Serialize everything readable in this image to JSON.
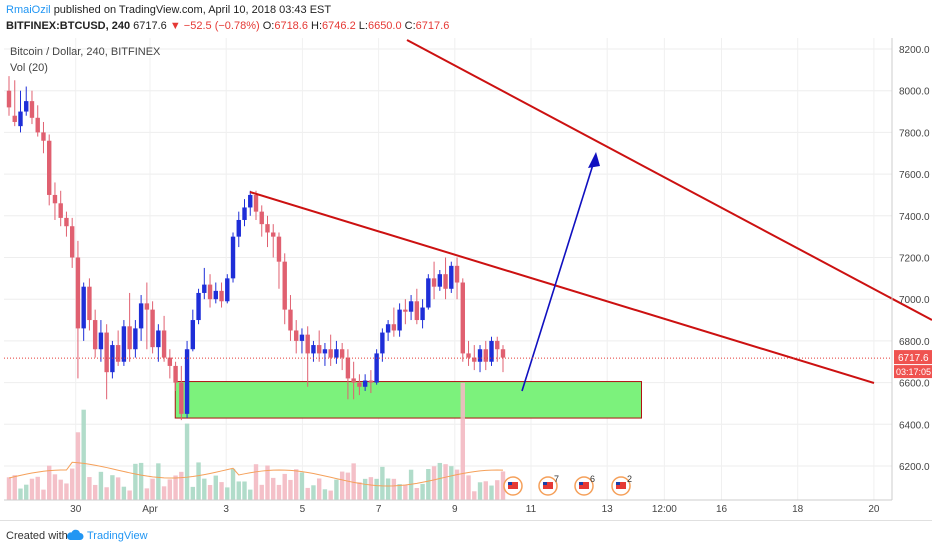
{
  "header": {
    "author": "RmaiOzil",
    "published_text": "published on TradingView.com, April 10, 2018 03:43 EST",
    "symbol": "BITFINEX:BTCUSD, 240",
    "last": "6717.6",
    "change": "▼ −52.5 (−0.78%)",
    "o_label": "O:",
    "o": "6718.6",
    "h_label": "H:",
    "h": "6746.2",
    "l_label": "L:",
    "l": "6650.0",
    "c_label": "C:",
    "c": "6717.6"
  },
  "pane": {
    "title": "Bitcoin / Dollar, 240, BITFINEX",
    "vol_title": "Vol (20)"
  },
  "footer": {
    "created_with": "Created with",
    "brand": "TradingView"
  },
  "chart_data": {
    "type": "candlestick",
    "title": "Bitcoin / Dollar, 240, BITFINEX",
    "xlabel": "",
    "ylabel": "",
    "ylim": [
      6050,
      8300
    ],
    "y_ticks": [
      "6200.0",
      "6400.0",
      "6600.0",
      "6800.0",
      "7000.0",
      "7200.0",
      "7400.0",
      "7600.0",
      "7800.0",
      "8000.0",
      "8200.0"
    ],
    "x_ticks": [
      "30",
      "Apr",
      "3",
      "5",
      "7",
      "9",
      "11",
      "13",
      "12:00",
      "16",
      "18",
      "20"
    ],
    "current_price_label": "6717.6",
    "countdown_label": "03:17:05",
    "colors": {
      "up": "#1e2ed8",
      "down": "#e06070",
      "trendline": "#cc1111",
      "arrow": "#1010c0",
      "zone_fill": "#7cf27c",
      "zone_border": "#b01010",
      "price_line": "#e53935"
    },
    "candles": [
      [
        8000,
        8070,
        7920,
        7880
      ],
      [
        7880,
        8050,
        7850,
        7830
      ],
      [
        7830,
        8000,
        7900,
        7800
      ],
      [
        7900,
        8020,
        7950,
        7880
      ],
      [
        7950,
        8000,
        7870,
        7840
      ],
      [
        7870,
        7930,
        7800,
        7780
      ],
      [
        7800,
        7850,
        7760,
        7700
      ],
      [
        7760,
        7790,
        7500,
        7450
      ],
      [
        7500,
        7560,
        7460,
        7380
      ],
      [
        7460,
        7520,
        7390,
        7350
      ],
      [
        7390,
        7420,
        7350,
        7300
      ],
      [
        7350,
        7390,
        7200,
        7150
      ],
      [
        7200,
        7280,
        6860,
        6620
      ],
      [
        6860,
        7080,
        7060,
        6800
      ],
      [
        7060,
        7100,
        6900,
        6850
      ],
      [
        6900,
        6950,
        6760,
        6720
      ],
      [
        6760,
        6900,
        6840,
        6700
      ],
      [
        6840,
        6880,
        6650,
        6520
      ],
      [
        6650,
        6800,
        6780,
        6620
      ],
      [
        6780,
        6850,
        6700,
        6680
      ],
      [
        6700,
        6900,
        6870,
        6680
      ],
      [
        6870,
        7030,
        6760,
        6700
      ],
      [
        6760,
        6900,
        6860,
        6720
      ],
      [
        6860,
        7020,
        6980,
        6800
      ],
      [
        6980,
        7080,
        6950,
        6760
      ],
      [
        6950,
        6990,
        6770,
        6740
      ],
      [
        6770,
        6880,
        6850,
        6700
      ],
      [
        6850,
        6920,
        6720,
        6700
      ],
      [
        6720,
        6760,
        6680,
        6620
      ],
      [
        6680,
        6700,
        6600,
        6560
      ],
      [
        6600,
        6680,
        6450,
        6420
      ],
      [
        6450,
        6800,
        6760,
        6430
      ],
      [
        6760,
        6950,
        6900,
        6750
      ],
      [
        6900,
        7050,
        7030,
        6880
      ],
      [
        7030,
        7150,
        7070,
        7000
      ],
      [
        7070,
        7120,
        7000,
        6960
      ],
      [
        7000,
        7080,
        7040,
        6980
      ],
      [
        7040,
        7080,
        6990,
        6960
      ],
      [
        6990,
        7120,
        7100,
        6980
      ],
      [
        7100,
        7320,
        7300,
        7080
      ],
      [
        7300,
        7420,
        7380,
        7250
      ],
      [
        7380,
        7480,
        7440,
        7350
      ],
      [
        7440,
        7520,
        7500,
        7400
      ],
      [
        7500,
        7520,
        7420,
        7380
      ],
      [
        7420,
        7450,
        7360,
        7300
      ],
      [
        7360,
        7400,
        7320,
        7250
      ],
      [
        7320,
        7360,
        7300,
        7200
      ],
      [
        7300,
        7320,
        7180,
        7050
      ],
      [
        7180,
        7220,
        6950,
        6880
      ],
      [
        6950,
        7020,
        6850,
        6800
      ],
      [
        6850,
        6900,
        6800,
        6740
      ],
      [
        6800,
        6860,
        6830,
        6740
      ],
      [
        6830,
        6870,
        6740,
        6580
      ],
      [
        6740,
        6800,
        6780,
        6700
      ],
      [
        6780,
        6850,
        6740,
        6700
      ],
      [
        6740,
        6790,
        6760,
        6680
      ],
      [
        6760,
        6830,
        6720,
        6680
      ],
      [
        6720,
        6800,
        6760,
        6690
      ],
      [
        6760,
        6790,
        6720,
        6660
      ],
      [
        6720,
        6760,
        6620,
        6520
      ],
      [
        6620,
        6700,
        6600,
        6520
      ],
      [
        6600,
        6640,
        6580,
        6540
      ],
      [
        6580,
        6640,
        6610,
        6560
      ],
      [
        6610,
        6660,
        6600,
        6550
      ],
      [
        6600,
        6760,
        6740,
        6590
      ],
      [
        6740,
        6860,
        6840,
        6700
      ],
      [
        6840,
        6900,
        6880,
        6800
      ],
      [
        6880,
        6960,
        6850,
        6820
      ],
      [
        6850,
        6980,
        6950,
        6820
      ],
      [
        6950,
        7000,
        6940,
        6880
      ],
      [
        6940,
        7020,
        6990,
        6900
      ],
      [
        6990,
        7050,
        6900,
        6880
      ],
      [
        6900,
        7000,
        6960,
        6860
      ],
      [
        6960,
        7120,
        7100,
        6950
      ],
      [
        7100,
        7180,
        7060,
        7000
      ],
      [
        7060,
        7140,
        7120,
        7040
      ],
      [
        7120,
        7200,
        7050,
        7000
      ],
      [
        7050,
        7180,
        7160,
        7030
      ],
      [
        7160,
        7200,
        7080,
        7000
      ],
      [
        7080,
        7100,
        6740,
        6700
      ],
      [
        6740,
        6800,
        6720,
        6680
      ],
      [
        6720,
        6780,
        6700,
        6660
      ],
      [
        6700,
        6780,
        6760,
        6650
      ],
      [
        6760,
        6800,
        6700,
        6660
      ],
      [
        6700,
        6820,
        6800,
        6680
      ],
      [
        6800,
        6820,
        6760,
        6700
      ],
      [
        6760,
        6780,
        6720,
        6650
      ]
    ],
    "volume_ma_label": "Vol (20)",
    "trendlines": [
      {
        "name": "upper-downtrend",
        "from": [
          -3.5,
          8350
        ],
        "to": [
          20.5,
          6920
        ]
      },
      {
        "name": "lower-downtrend",
        "from": [
          3.6,
          7520
        ],
        "to": [
          20.0,
          6590
        ]
      }
    ],
    "support_zone": {
      "x0": 0.4,
      "x1": 12.9,
      "y_low": 6430,
      "y_high": 6605
    },
    "projection_arrow": {
      "from": [
        10.0,
        6570
      ],
      "to": [
        12.9,
        7720
      ]
    },
    "event_flags": [
      {
        "label": "",
        "x": 9.8
      },
      {
        "label": "7",
        "x": 11.3
      },
      {
        "label": "6",
        "x": 12.3
      },
      {
        "label": "2",
        "x": 13.5
      }
    ]
  }
}
